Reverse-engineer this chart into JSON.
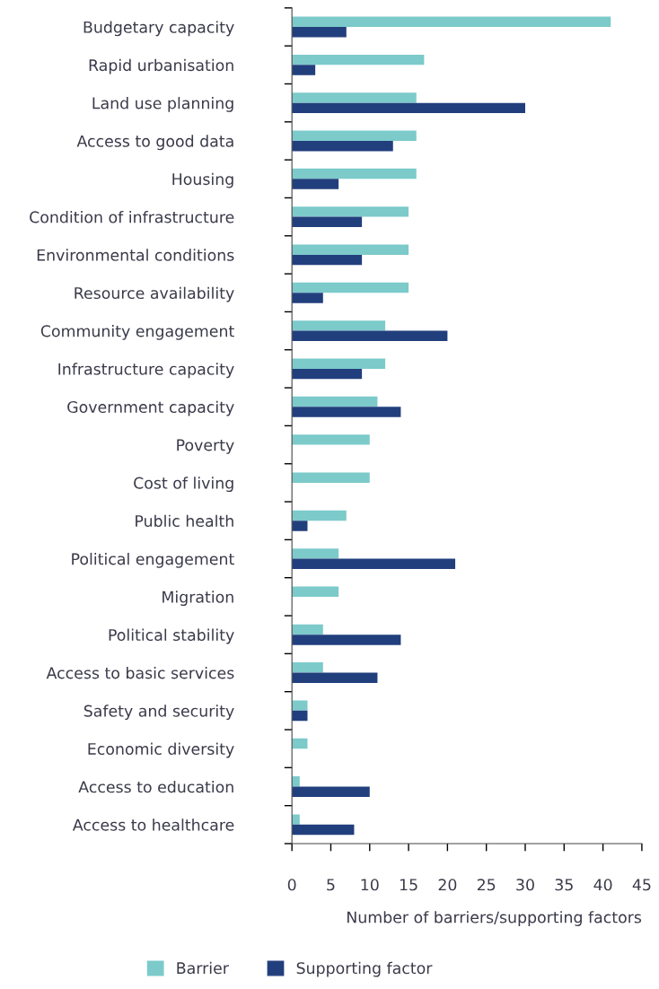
{
  "chart_data": {
    "type": "bar",
    "orientation": "horizontal",
    "categories": [
      "Budgetary capacity",
      "Rapid urbanisation",
      "Land use planning",
      "Access to good data",
      "Housing",
      "Condition of infrastructure",
      "Environmental conditions",
      "Resource availability",
      "Community engagement",
      "Infrastructure capacity",
      "Government capacity",
      "Poverty",
      "Cost of living",
      "Public health",
      "Political engagement",
      "Migration",
      "Political stability",
      "Access to basic services",
      "Safety and security",
      "Economic diversity",
      "Access to education",
      "Access to healthcare"
    ],
    "series": [
      {
        "name": "Barrier",
        "color": "#7ccaca",
        "values": [
          41,
          17,
          16,
          16,
          16,
          15,
          15,
          15,
          12,
          12,
          11,
          10,
          10,
          7,
          6,
          6,
          4,
          4,
          2,
          2,
          1,
          1
        ]
      },
      {
        "name": "Supporting factor",
        "color": "#223f7d",
        "values": [
          7,
          3,
          30,
          13,
          6,
          9,
          9,
          4,
          20,
          9,
          14,
          null,
          null,
          2,
          21,
          null,
          14,
          11,
          2,
          null,
          10,
          8
        ]
      }
    ],
    "xlabel": "Number of barriers/supporting factors",
    "xlim": [
      0,
      45
    ],
    "xticks": [
      0,
      5,
      10,
      15,
      20,
      25,
      30,
      35,
      40,
      45
    ],
    "grid": false,
    "legend": "bottom"
  }
}
